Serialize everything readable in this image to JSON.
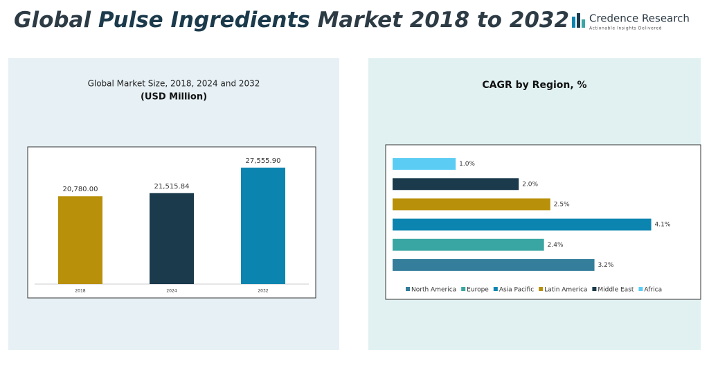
{
  "title_parts": [
    "Global",
    "Pulse Ingredients",
    "Market 2018 to 2032"
  ],
  "logo": {
    "name": "Credence Research",
    "tagline": "Actionable Insights Delivered"
  },
  "chart_data": [
    {
      "type": "bar",
      "title": "Global Market Size, 2018, 2024 and 2032",
      "subtitle": "(USD Million)",
      "categories": [
        "2018",
        "2024",
        "2032"
      ],
      "values": [
        20780,
        21515.84,
        27555.9
      ],
      "value_labels": [
        "20,780.00",
        "21,515.84",
        "27,555.90"
      ],
      "colors": [
        "#b8900a",
        "#1b3a4b",
        "#0b85b0"
      ],
      "ylim": [
        0,
        30000
      ]
    },
    {
      "type": "barh",
      "title": "CAGR by Region, %",
      "categories": [
        "North America",
        "Europe",
        "Asia Pacific",
        "Latin America",
        "Middle East",
        "Africa"
      ],
      "values": [
        3.2,
        2.4,
        4.1,
        2.5,
        2.0,
        1.0
      ],
      "value_labels": [
        "3.2%",
        "2.4%",
        "4.1%",
        "2.5%",
        "2.0%",
        "1.0%"
      ],
      "colors": [
        "#347d9b",
        "#3aa6a3",
        "#0b85b0",
        "#b8900a",
        "#1b3a4b",
        "#5bcdf5"
      ],
      "xlim": [
        0,
        4.5
      ],
      "legend": "bottom"
    }
  ]
}
